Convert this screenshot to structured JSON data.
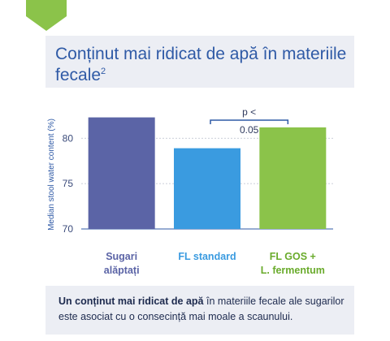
{
  "title": {
    "text": "Conținut mai ridicat de apă în materiile fecale",
    "superscript": "2"
  },
  "chart_data": {
    "type": "bar",
    "categories": [
      "Sugari alăptați",
      "FL standard",
      "FL GOS + L. fermentum"
    ],
    "category_lines": [
      [
        "Sugari",
        "alăptați"
      ],
      [
        "FL standard"
      ],
      [
        "FL GOS +",
        "L. fermentum"
      ]
    ],
    "values": [
      82.3,
      78.9,
      81.2
    ],
    "ylabel": "Median stool water content (%)",
    "ylim": [
      70,
      84.5
    ],
    "yticks": [
      70,
      75,
      80
    ],
    "grid": true,
    "colors": [
      "#5b64a6",
      "#3a9be0",
      "#8bc34a"
    ],
    "label_colors": [
      "#5b64a6",
      "#3a9be0",
      "#6aab2c"
    ],
    "annotation": {
      "text_top": "p <",
      "text_bottom": "0.05",
      "from_category": 1,
      "to_category": 2
    }
  },
  "footer": {
    "bold_text": "Un conținut mai ridicat de apă",
    "rest_text": " în materiile fecale ale sugarilor este asociat cu o consecință mai moale a scaunului."
  },
  "badge_color": "#8bc34a"
}
